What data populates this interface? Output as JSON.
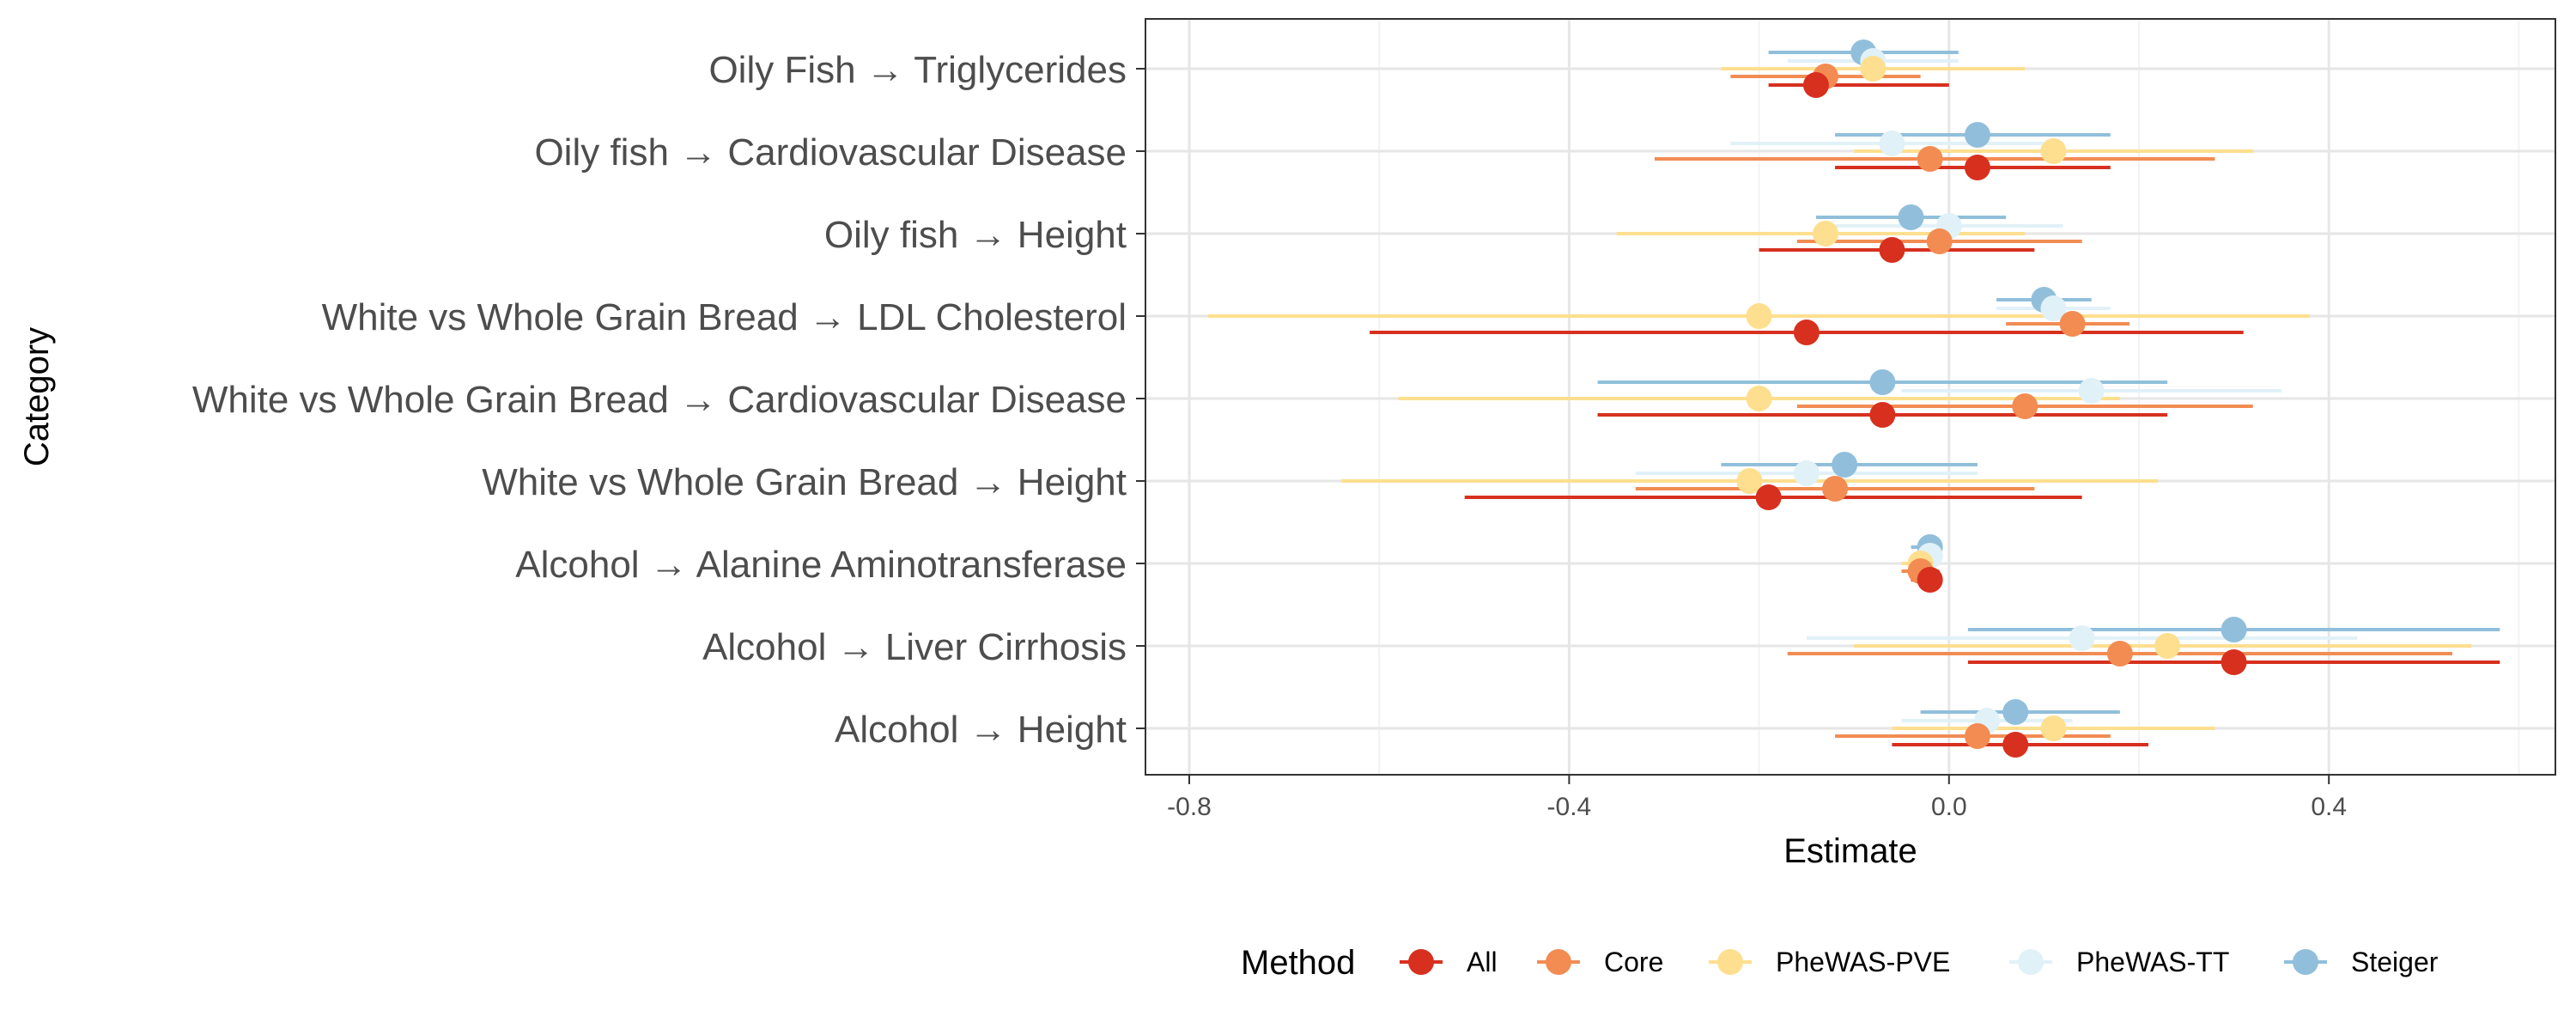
{
  "chart_data": {
    "type": "forest",
    "xlabel": "Estimate",
    "ylabel": "Category",
    "xlim": [
      -0.85,
      0.64
    ],
    "xticks": [
      -0.8,
      -0.4,
      0.0,
      0.4
    ],
    "xtick_labels": [
      "-0.8",
      "-0.4",
      "0.0",
      "0.4"
    ],
    "grid": true,
    "legend": {
      "title": "Method",
      "position": "bottom"
    },
    "categories": [
      "Oily Fish → Triglycerides",
      "Oily fish → Cardiovascular Disease",
      "Oily fish → Height",
      "White vs Whole Grain Bread → LDL Cholesterol",
      "White vs Whole Grain Bread → Cardiovascular Disease",
      "White vs Whole Grain Bread → Height",
      "Alcohol → Alanine Aminotransferase",
      "Alcohol → Liver Cirrhosis",
      "Alcohol → Height"
    ],
    "series": [
      {
        "name": "All",
        "color": "#d7301f",
        "points": [
          {
            "estimate": -0.14,
            "lower": -0.19,
            "upper": 0.0
          },
          {
            "estimate": 0.03,
            "lower": -0.12,
            "upper": 0.17
          },
          {
            "estimate": -0.06,
            "lower": -0.2,
            "upper": 0.09
          },
          {
            "estimate": -0.15,
            "lower": -0.61,
            "upper": 0.31
          },
          {
            "estimate": -0.07,
            "lower": -0.37,
            "upper": 0.23
          },
          {
            "estimate": -0.19,
            "lower": -0.51,
            "upper": 0.14
          },
          {
            "estimate": -0.02,
            "lower": -0.04,
            "upper": -0.01
          },
          {
            "estimate": 0.3,
            "lower": 0.02,
            "upper": 0.58
          },
          {
            "estimate": 0.07,
            "lower": -0.06,
            "upper": 0.21
          }
        ]
      },
      {
        "name": "Core",
        "color": "#f28c53",
        "points": [
          {
            "estimate": -0.13,
            "lower": -0.23,
            "upper": -0.03
          },
          {
            "estimate": -0.02,
            "lower": -0.31,
            "upper": 0.28
          },
          {
            "estimate": -0.01,
            "lower": -0.16,
            "upper": 0.14
          },
          {
            "estimate": 0.13,
            "lower": 0.06,
            "upper": 0.19
          },
          {
            "estimate": 0.08,
            "lower": -0.16,
            "upper": 0.32
          },
          {
            "estimate": -0.12,
            "lower": -0.33,
            "upper": 0.09
          },
          {
            "estimate": -0.03,
            "lower": -0.05,
            "upper": -0.01
          },
          {
            "estimate": 0.18,
            "lower": -0.17,
            "upper": 0.53
          },
          {
            "estimate": 0.03,
            "lower": -0.12,
            "upper": 0.17
          }
        ]
      },
      {
        "name": "PheWAS-PVE",
        "color": "#fedf8f",
        "points": [
          {
            "estimate": -0.08,
            "lower": -0.24,
            "upper": 0.08
          },
          {
            "estimate": 0.11,
            "lower": -0.1,
            "upper": 0.32
          },
          {
            "estimate": -0.13,
            "lower": -0.35,
            "upper": 0.08
          },
          {
            "estimate": -0.2,
            "lower": -0.78,
            "upper": 0.38
          },
          {
            "estimate": -0.2,
            "lower": -0.58,
            "upper": 0.18
          },
          {
            "estimate": -0.21,
            "lower": -0.64,
            "upper": 0.22
          },
          {
            "estimate": -0.03,
            "lower": -0.05,
            "upper": -0.01
          },
          {
            "estimate": 0.23,
            "lower": -0.1,
            "upper": 0.55
          },
          {
            "estimate": 0.11,
            "lower": -0.06,
            "upper": 0.28
          }
        ]
      },
      {
        "name": "PheWAS-TT",
        "color": "#e1f1f8",
        "points": [
          {
            "estimate": -0.08,
            "lower": -0.17,
            "upper": 0.01
          },
          {
            "estimate": -0.06,
            "lower": -0.23,
            "upper": 0.1
          },
          {
            "estimate": 0.0,
            "lower": -0.12,
            "upper": 0.12
          },
          {
            "estimate": 0.11,
            "lower": 0.05,
            "upper": 0.17
          },
          {
            "estimate": 0.15,
            "lower": -0.05,
            "upper": 0.35
          },
          {
            "estimate": -0.15,
            "lower": -0.33,
            "upper": 0.03
          },
          {
            "estimate": -0.02,
            "lower": -0.04,
            "upper": -0.01
          },
          {
            "estimate": 0.14,
            "lower": -0.15,
            "upper": 0.43
          },
          {
            "estimate": 0.04,
            "lower": -0.05,
            "upper": 0.13
          }
        ]
      },
      {
        "name": "Steiger",
        "color": "#91bfdb",
        "points": [
          {
            "estimate": -0.09,
            "lower": -0.19,
            "upper": 0.01
          },
          {
            "estimate": 0.03,
            "lower": -0.12,
            "upper": 0.17
          },
          {
            "estimate": -0.04,
            "lower": -0.14,
            "upper": 0.06
          },
          {
            "estimate": 0.1,
            "lower": 0.05,
            "upper": 0.15
          },
          {
            "estimate": -0.07,
            "lower": -0.37,
            "upper": 0.23
          },
          {
            "estimate": -0.11,
            "lower": -0.24,
            "upper": 0.03
          },
          {
            "estimate": -0.02,
            "lower": -0.04,
            "upper": -0.01
          },
          {
            "estimate": 0.3,
            "lower": 0.02,
            "upper": 0.58
          },
          {
            "estimate": 0.07,
            "lower": -0.03,
            "upper": 0.18
          }
        ]
      }
    ]
  }
}
